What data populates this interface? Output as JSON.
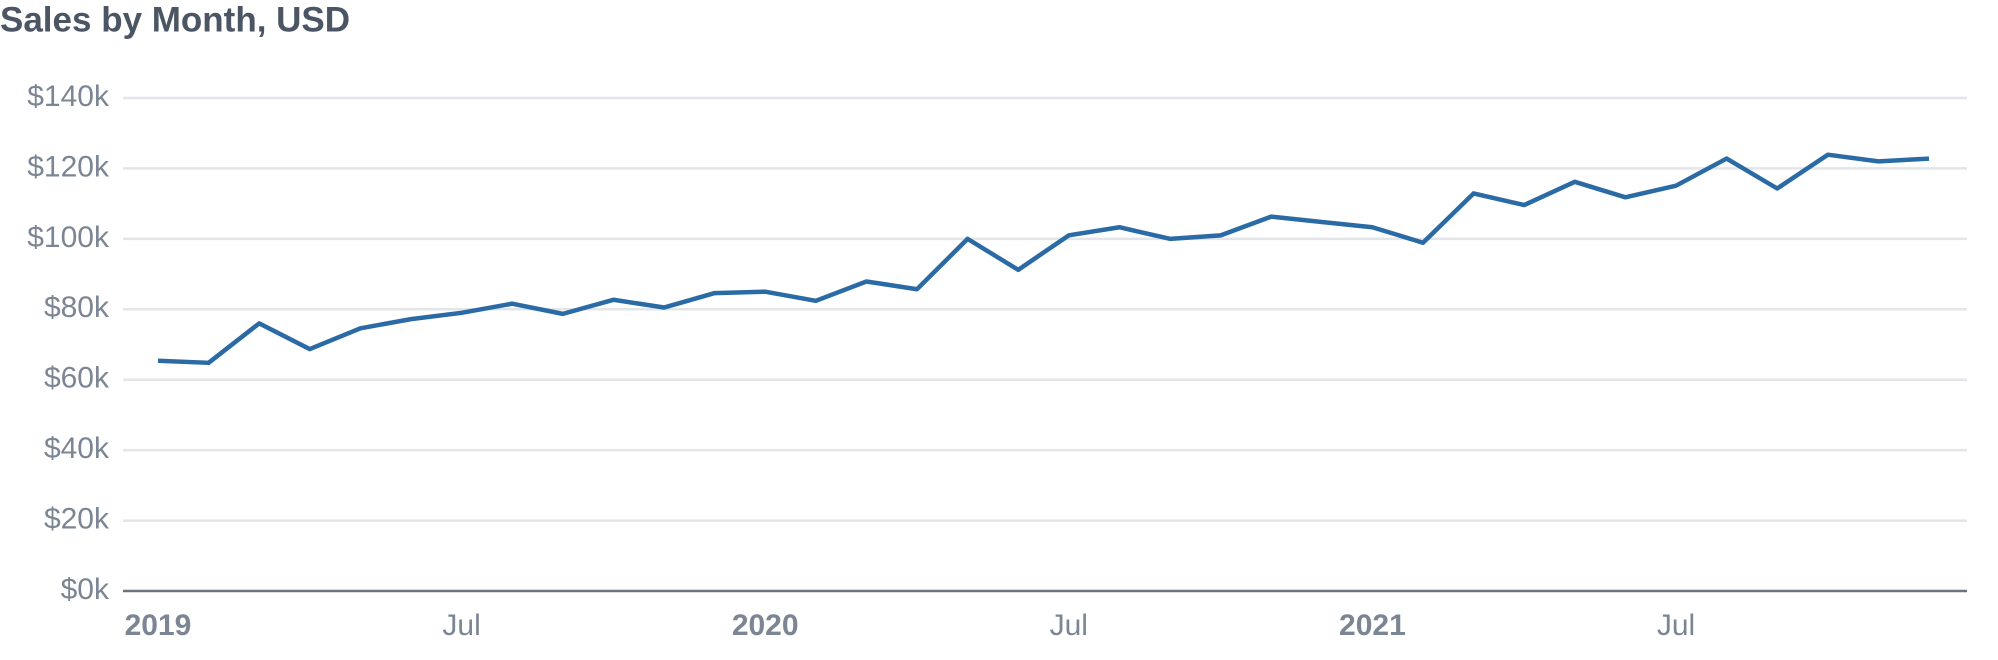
{
  "chart_data": {
    "type": "line",
    "title": "Sales by Month, USD",
    "x": [
      "2019-01",
      "2019-02",
      "2019-03",
      "2019-04",
      "2019-05",
      "2019-06",
      "2019-07",
      "2019-08",
      "2019-09",
      "2019-10",
      "2019-11",
      "2019-12",
      "2020-01",
      "2020-02",
      "2020-03",
      "2020-04",
      "2020-05",
      "2020-06",
      "2020-07",
      "2020-08",
      "2020-09",
      "2020-10",
      "2020-11",
      "2020-12",
      "2021-01",
      "2021-02",
      "2021-03",
      "2021-04",
      "2021-05",
      "2021-06",
      "2021-07",
      "2021-08",
      "2021-09",
      "2021-10",
      "2021-11",
      "2021-12"
    ],
    "series": [
      {
        "color": "#2b6ba5",
        "values": [
          65400,
          64800,
          76000,
          68700,
          74600,
          77200,
          79000,
          81600,
          78700,
          82700,
          80500,
          84600,
          85000,
          82400,
          87900,
          85700,
          100000,
          91200,
          101000,
          103300,
          100000,
          101000,
          106300,
          104800,
          103300,
          98900,
          112900,
          109600,
          116200,
          111800,
          115100,
          122800,
          114300,
          123900,
          122000,
          122800
        ]
      }
    ],
    "ylim": [
      0,
      140000
    ],
    "yticks": [
      {
        "value": 0,
        "label": "$0k"
      },
      {
        "value": 20000,
        "label": "$20k"
      },
      {
        "value": 40000,
        "label": "$40k"
      },
      {
        "value": 60000,
        "label": "$60k"
      },
      {
        "value": 80000,
        "label": "$80k"
      },
      {
        "value": 100000,
        "label": "$100k"
      },
      {
        "value": 120000,
        "label": "$120k"
      },
      {
        "value": 140000,
        "label": "$140k"
      }
    ],
    "xticks": [
      {
        "value": "2019-01",
        "label": "2019"
      },
      {
        "value": "2019-07",
        "label": "Jul"
      },
      {
        "value": "2020-01",
        "label": "2020"
      },
      {
        "value": "2020-07",
        "label": "Jul"
      },
      {
        "value": "2021-01",
        "label": "2021"
      },
      {
        "value": "2021-07",
        "label": "Jul"
      }
    ],
    "grid": true
  }
}
